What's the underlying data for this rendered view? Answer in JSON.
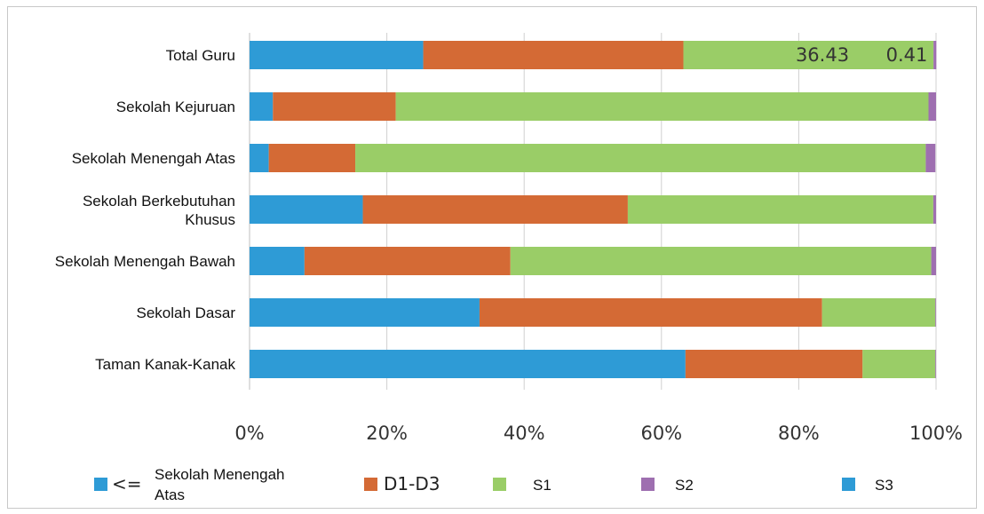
{
  "chart_data": {
    "type": "bar",
    "orientation": "horizontal",
    "stacked": "percent",
    "categories": [
      "Total Guru",
      "Sekolah Kejuruan",
      "Sekolah Menengah Atas",
      "Sekolah Berkebutuhan Khusus",
      "Sekolah Menengah Bawah",
      "Sekolah Dasar",
      "Taman Kanak-Kanak"
    ],
    "series": [
      {
        "name": "<= Sekolah Menengah Atas",
        "color": "#2e9bd6",
        "values": [
          25.3,
          3.4,
          2.8,
          16.5,
          8.0,
          33.5,
          63.5
        ]
      },
      {
        "name": "D1-D3",
        "color": "#d46a35",
        "values": [
          37.9,
          17.9,
          12.6,
          38.6,
          30.0,
          49.9,
          25.8
        ]
      },
      {
        "name": "S1",
        "color": "#9acd67",
        "values": [
          36.43,
          77.6,
          83.1,
          44.5,
          61.3,
          16.5,
          10.6
        ]
      },
      {
        "name": "S2",
        "color": "#9e6fb0",
        "values": [
          0.41,
          1.1,
          1.4,
          0.4,
          0.7,
          0.1,
          0.1
        ]
      },
      {
        "name": "S3",
        "color": "#2e9bd6",
        "values": [
          0.0,
          0.0,
          0.0,
          0.0,
          0.0,
          0.0,
          0.0
        ]
      }
    ],
    "x_ticks": [
      "0%",
      "20%",
      "40%",
      "60%",
      "80%",
      "100%"
    ],
    "xlim": [
      0,
      100
    ],
    "data_labels": [
      {
        "category": "Total Guru",
        "series": "S1",
        "text": "36.43"
      },
      {
        "category": "Total Guru",
        "series": "S2",
        "text": "0.41"
      }
    ],
    "grid": "vertical",
    "legend_position": "bottom",
    "legend": [
      {
        "symbol": "<=",
        "text": "Sekolah Menengah Atas",
        "color": "#2e9bd6"
      },
      {
        "text": "D1-D3",
        "color": "#d46a35"
      },
      {
        "text": "S1",
        "color": "#9acd67"
      },
      {
        "text": "S2",
        "color": "#9e6fb0"
      },
      {
        "text": "S3",
        "color": "#2e9bd6"
      }
    ]
  }
}
